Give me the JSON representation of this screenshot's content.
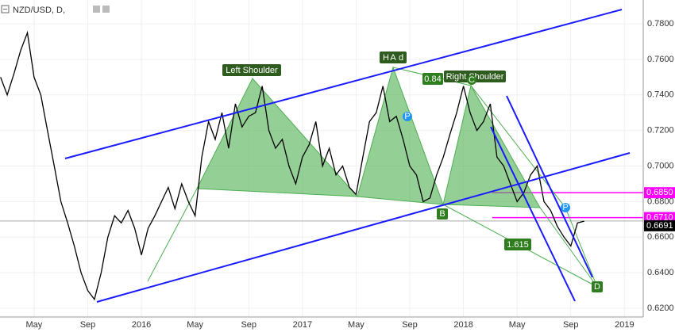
{
  "chart_data": {
    "type": "line",
    "title": "NZD/USD, D,",
    "x": [
      1.5,
      2,
      2.5,
      3,
      3.5,
      4,
      4.5,
      5,
      5.5,
      6,
      6.5,
      7,
      7.5,
      8,
      8.5,
      9,
      9.5,
      10,
      10.5,
      11,
      11.5,
      12,
      12.5,
      13,
      13.5,
      14,
      14.5,
      15,
      15.5,
      16,
      16.5,
      17,
      17.5,
      18,
      18.5,
      19,
      19.5,
      20,
      20.5,
      21,
      21.5,
      22,
      22.5,
      23,
      23.5,
      24,
      24.5,
      25,
      25.5,
      26,
      26.5,
      27,
      27.5,
      28,
      28.5,
      29,
      29.5,
      30,
      30.5,
      31,
      31.5,
      32,
      32.5,
      33,
      33.5,
      34,
      34.5,
      35,
      35.5,
      36,
      36.5,
      37,
      37.5,
      38,
      38.5,
      39,
      39.5,
      40,
      40.5,
      41,
      41.5,
      42,
      42.5,
      43,
      43.5,
      44,
      44.5,
      45
    ],
    "values": [
      0.75,
      0.74,
      0.752,
      0.765,
      0.775,
      0.75,
      0.74,
      0.72,
      0.7,
      0.68,
      0.668,
      0.655,
      0.64,
      0.63,
      0.625,
      0.64,
      0.66,
      0.672,
      0.668,
      0.675,
      0.665,
      0.65,
      0.665,
      0.672,
      0.68,
      0.688,
      0.676,
      0.69,
      0.68,
      0.672,
      0.705,
      0.725,
      0.715,
      0.73,
      0.71,
      0.735,
      0.722,
      0.728,
      0.73,
      0.745,
      0.72,
      0.71,
      0.715,
      0.7,
      0.69,
      0.705,
      0.712,
      0.725,
      0.7,
      0.71,
      0.695,
      0.7,
      0.688,
      0.684,
      0.705,
      0.725,
      0.73,
      0.745,
      0.725,
      0.728,
      0.715,
      0.7,
      0.695,
      0.68,
      0.682,
      0.695,
      0.705,
      0.718,
      0.73,
      0.745,
      0.73,
      0.72,
      0.725,
      0.735,
      0.705,
      0.7,
      0.69,
      0.68,
      0.685,
      0.695,
      0.7,
      0.68,
      0.675,
      0.666,
      0.66,
      0.655,
      0.668,
      0.669
    ],
    "color": "#000000",
    "xlim": [
      1.46,
      49.4
    ],
    "xticks": [
      {
        "value": 4,
        "label": "May"
      },
      {
        "value": 8,
        "label": "Sep"
      },
      {
        "value": 12,
        "label": "2016"
      },
      {
        "value": 16,
        "label": "May"
      },
      {
        "value": 20,
        "label": "Sep"
      },
      {
        "value": 24,
        "label": "2017"
      },
      {
        "value": 28,
        "label": "May"
      },
      {
        "value": 32,
        "label": "Sep"
      },
      {
        "value": 36,
        "label": "2018"
      },
      {
        "value": 40,
        "label": "May"
      },
      {
        "value": 44,
        "label": "Sep"
      },
      {
        "value": 48,
        "label": "2019"
      }
    ],
    "ylim": [
      0.6151,
      0.7934
    ],
    "yticks": [
      {
        "value": 0.62,
        "label": "0.6200"
      },
      {
        "value": 0.64,
        "label": "0.6400"
      },
      {
        "value": 0.66,
        "label": "0.6600"
      },
      {
        "value": 0.68,
        "label": "0.6800"
      },
      {
        "value": 0.7,
        "label": "0.7000"
      },
      {
        "value": 0.72,
        "label": "0.7200"
      },
      {
        "value": 0.74,
        "label": "0.7400"
      },
      {
        "value": 0.76,
        "label": "0.7600"
      },
      {
        "value": 0.78,
        "label": "0.7800"
      }
    ],
    "price_lines": [
      {
        "value": 0.685,
        "label": "0.6850",
        "color": "#ff00ff"
      },
      {
        "value": 0.671,
        "label": "0.6710",
        "color": "#ff00ff"
      },
      {
        "value": 0.6691,
        "label": "0.6691",
        "color": "#000000"
      }
    ],
    "annotations": [
      "Left Shoulder",
      "H",
      "A",
      "d",
      "0.84",
      "Right Shoulder",
      "C",
      "P",
      "B",
      "1.615",
      "D",
      "P"
    ]
  }
}
